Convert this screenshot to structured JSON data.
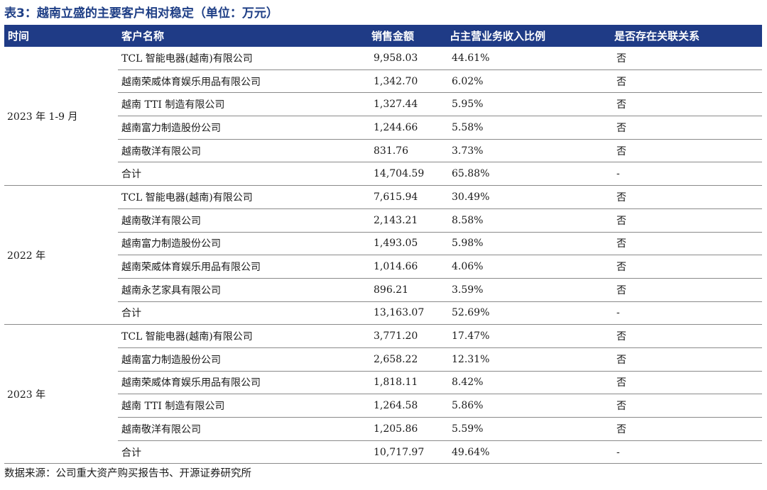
{
  "title": "表3：越南立盛的主要客户相对稳定（单位：万元）",
  "headers": [
    "时间",
    "客户名称",
    "销售金额",
    "占主营业务收入比例",
    "是否存在关联关系"
  ],
  "groups": [
    {
      "period": "2023 年 1-9 月",
      "rows": [
        {
          "customer": "TCL 智能电器(越南)有限公司",
          "amount": "9,958.03",
          "ratio": "44.61%",
          "related": "否"
        },
        {
          "customer": "越南荣威体育娱乐用品有限公司",
          "amount": "1,342.70",
          "ratio": "6.02%",
          "related": "否"
        },
        {
          "customer": "越南 TTI 制造有限公司",
          "amount": "1,327.44",
          "ratio": "5.95%",
          "related": "否"
        },
        {
          "customer": "越南富力制造股份公司",
          "amount": "1,244.66",
          "ratio": "5.58%",
          "related": "否"
        },
        {
          "customer": "越南敬洋有限公司",
          "amount": "831.76",
          "ratio": "3.73%",
          "related": "否"
        },
        {
          "customer": "合计",
          "amount": "14,704.59",
          "ratio": "65.88%",
          "related": "-"
        }
      ]
    },
    {
      "period": "2022 年",
      "rows": [
        {
          "customer": "TCL 智能电器(越南)有限公司",
          "amount": "7,615.94",
          "ratio": "30.49%",
          "related": "否"
        },
        {
          "customer": "越南敬洋有限公司",
          "amount": "2,143.21",
          "ratio": "8.58%",
          "related": "否"
        },
        {
          "customer": "越南富力制造股份公司",
          "amount": "1,493.05",
          "ratio": "5.98%",
          "related": "否"
        },
        {
          "customer": "越南荣威体育娱乐用品有限公司",
          "amount": "1,014.66",
          "ratio": "4.06%",
          "related": "否"
        },
        {
          "customer": "越南永艺家具有限公司",
          "amount": "896.21",
          "ratio": "3.59%",
          "related": "否"
        },
        {
          "customer": "合计",
          "amount": "13,163.07",
          "ratio": "52.69%",
          "related": "-"
        }
      ]
    },
    {
      "period": "2023 年",
      "rows": [
        {
          "customer": "TCL 智能电器(越南)有限公司",
          "amount": "3,771.20",
          "ratio": "17.47%",
          "related": "否"
        },
        {
          "customer": "越南富力制造股份公司",
          "amount": "2,658.22",
          "ratio": "12.31%",
          "related": "否"
        },
        {
          "customer": "越南荣威体育娱乐用品有限公司",
          "amount": "1,818.11",
          "ratio": "8.42%",
          "related": "否"
        },
        {
          "customer": "越南 TTI 制造有限公司",
          "amount": "1,264.58",
          "ratio": "5.86%",
          "related": "否"
        },
        {
          "customer": "越南敬洋有限公司",
          "amount": "1,205.86",
          "ratio": "5.59%",
          "related": "否"
        },
        {
          "customer": "合计",
          "amount": "10,717.97",
          "ratio": "49.64%",
          "related": "-"
        }
      ]
    }
  ],
  "source": "数据来源：公司重大资产购买报告书、开源证券研究所",
  "colors": {
    "header_bg": "#1f3b86",
    "title": "#1f3f86"
  }
}
